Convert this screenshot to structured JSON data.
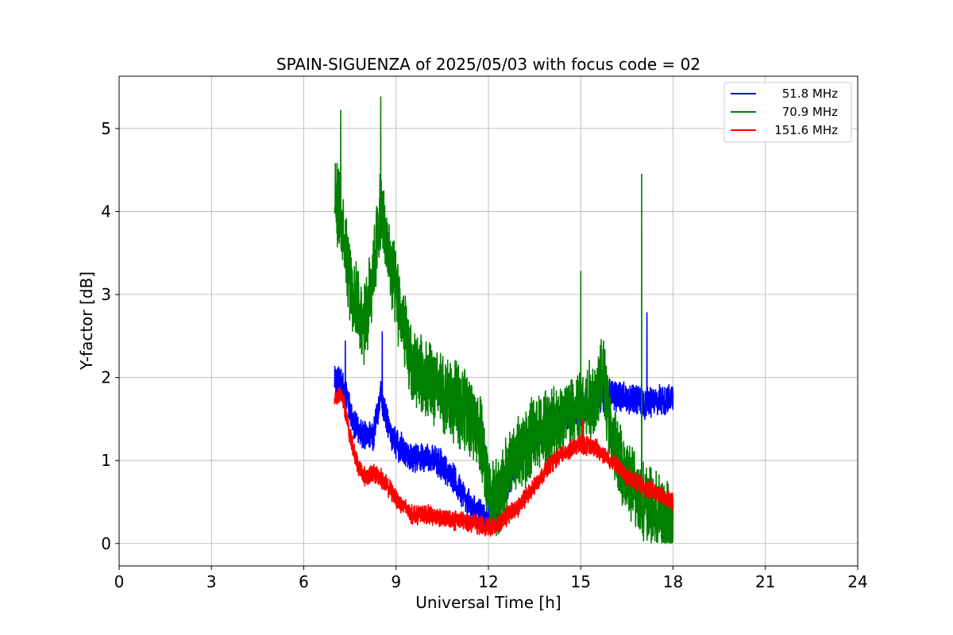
{
  "chart_data": {
    "type": "line",
    "title": "SPAIN-SIGUENZA of 2025/05/03 with focus code = 02",
    "xlabel": "Universal Time [h]",
    "ylabel": "Y-factor [dB]",
    "xlim": [
      0,
      24
    ],
    "ylim": [
      -0.27,
      5.63
    ],
    "xticks": [
      0,
      3,
      6,
      9,
      12,
      15,
      18,
      21,
      24
    ],
    "yticks": [
      0,
      1,
      2,
      3,
      4,
      5
    ],
    "grid": true,
    "legend_position": "top-right",
    "series": [
      {
        "name": " 51.8 MHz",
        "color": "#0000ff",
        "amplitude": 0.16,
        "x": [
          7.0,
          7.25,
          7.5,
          7.75,
          8.0,
          8.25,
          8.5,
          8.75,
          9.0,
          9.5,
          10.0,
          10.5,
          11.0,
          11.5,
          12.0,
          12.25,
          12.5,
          12.75,
          13.0,
          13.5,
          14.0,
          14.5,
          15.0,
          15.5,
          16.0,
          16.5,
          17.0,
          17.5,
          18.0
        ],
        "y": [
          2.0,
          1.95,
          1.6,
          1.35,
          1.3,
          1.3,
          1.8,
          1.4,
          1.2,
          1.05,
          1.05,
          0.95,
          0.7,
          0.4,
          0.3,
          0.4,
          0.55,
          0.85,
          1.1,
          1.3,
          1.45,
          1.55,
          1.6,
          1.7,
          1.8,
          1.75,
          1.7,
          1.7,
          1.8
        ]
      },
      {
        "name": " 70.9 MHz",
        "color": "#008000",
        "amplitude": 0.42,
        "x": [
          7.0,
          7.25,
          7.5,
          7.75,
          8.0,
          8.25,
          8.5,
          8.75,
          9.0,
          9.25,
          9.5,
          10.0,
          10.5,
          11.0,
          11.5,
          11.75,
          12.0,
          12.25,
          12.5,
          12.75,
          13.0,
          13.5,
          14.0,
          14.5,
          15.0,
          15.5,
          15.75,
          16.0,
          16.5,
          17.0,
          17.5,
          18.0
        ],
        "y": [
          4.2,
          3.9,
          3.2,
          2.8,
          2.6,
          3.3,
          4.0,
          3.5,
          3.0,
          2.6,
          2.1,
          2.0,
          1.8,
          1.7,
          1.5,
          1.3,
          0.65,
          0.5,
          0.7,
          1.0,
          1.1,
          1.3,
          1.4,
          1.55,
          1.6,
          1.8,
          2.1,
          1.2,
          0.8,
          0.5,
          0.35,
          0.2
        ]
      },
      {
        "name": "151.6 MHz",
        "color": "#ff0000",
        "amplitude": 0.1,
        "x": [
          7.0,
          7.25,
          7.5,
          7.75,
          8.0,
          8.25,
          8.5,
          9.0,
          9.5,
          10.0,
          10.5,
          11.0,
          11.5,
          12.0,
          12.25,
          12.5,
          13.0,
          13.5,
          14.0,
          14.5,
          15.0,
          15.5,
          16.0,
          16.5,
          17.0,
          17.5,
          18.0
        ],
        "y": [
          1.75,
          1.8,
          1.3,
          0.95,
          0.8,
          0.85,
          0.8,
          0.55,
          0.35,
          0.35,
          0.3,
          0.28,
          0.25,
          0.2,
          0.22,
          0.3,
          0.45,
          0.7,
          0.95,
          1.1,
          1.2,
          1.15,
          1.0,
          0.8,
          0.7,
          0.6,
          0.5
        ]
      }
    ],
    "spikes": [
      {
        "series": 0,
        "x": 7.35,
        "y": 2.44
      },
      {
        "series": 0,
        "x": 8.55,
        "y": 2.55
      },
      {
        "series": 0,
        "x": 17.15,
        "y": 2.78
      },
      {
        "series": 1,
        "x": 7.2,
        "y": 5.22
      },
      {
        "series": 1,
        "x": 8.5,
        "y": 5.38
      },
      {
        "series": 1,
        "x": 15.0,
        "y": 3.28
      },
      {
        "series": 1,
        "x": 16.98,
        "y": 4.45
      },
      {
        "series": 2,
        "x": 15.05,
        "y": 1.5
      }
    ]
  }
}
